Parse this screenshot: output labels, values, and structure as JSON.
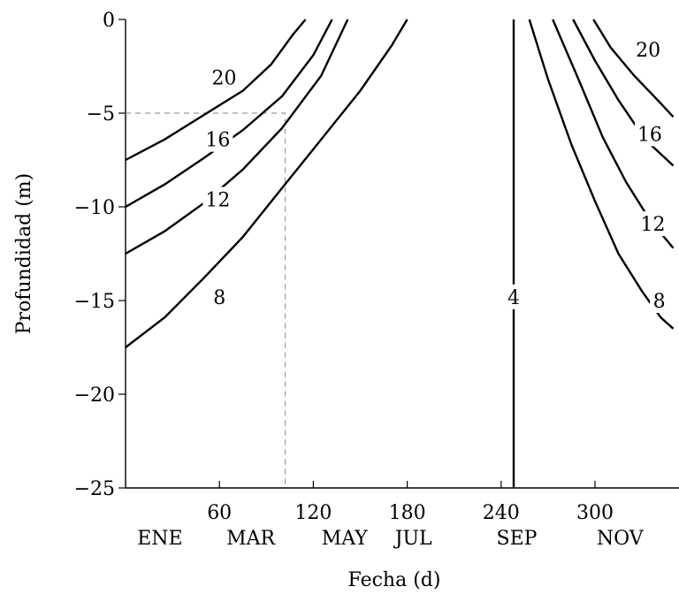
{
  "chart_data": {
    "type": "line",
    "xlabel": "Fecha (d)",
    "ylabel": "Profundidad (m)",
    "xlim": [
      0,
      350
    ],
    "ylim": [
      -25,
      0
    ],
    "xticks": [
      60,
      120,
      180,
      240,
      300
    ],
    "yticks": [
      0,
      -5,
      -10,
      -15,
      -20,
      -25
    ],
    "month_labels": [
      {
        "label": "ENE",
        "x": 22
      },
      {
        "label": "MAR",
        "x": 80
      },
      {
        "label": "MAY",
        "x": 140
      },
      {
        "label": "JUL",
        "x": 184
      },
      {
        "label": "SEP",
        "x": 250
      },
      {
        "label": "NOV",
        "x": 316
      }
    ],
    "guide_point": {
      "x": 102,
      "y": -5
    },
    "series": [
      {
        "name": "20",
        "segments": [
          [
            [
              0,
              -7.5
            ],
            [
              25,
              -6.4
            ],
            [
              50,
              -5.1
            ],
            [
              75,
              -3.8
            ],
            [
              93,
              -2.4
            ],
            [
              107,
              -0.8
            ],
            [
              115,
              0
            ]
          ],
          [
            [
              299,
              0
            ],
            [
              310,
              -1.5
            ],
            [
              325,
              -3.0
            ],
            [
              340,
              -4.3
            ],
            [
              350,
              -5.2
            ]
          ]
        ]
      },
      {
        "name": "16",
        "segments": [
          [
            [
              0,
              -10
            ],
            [
              25,
              -8.8
            ],
            [
              50,
              -7.4
            ],
            [
              75,
              -5.9
            ],
            [
              100,
              -4.1
            ],
            [
              120,
              -1.9
            ],
            [
              132,
              0
            ]
          ],
          [
            [
              286,
              0
            ],
            [
              300,
              -2.2
            ],
            [
              315,
              -4.3
            ],
            [
              332,
              -6.4
            ],
            [
              350,
              -7.8
            ]
          ]
        ]
      },
      {
        "name": "12",
        "segments": [
          [
            [
              0,
              -12.5
            ],
            [
              25,
              -11.3
            ],
            [
              50,
              -9.8
            ],
            [
              75,
              -8.0
            ],
            [
              100,
              -5.8
            ],
            [
              125,
              -3.0
            ],
            [
              142,
              0
            ]
          ],
          [
            [
              273,
              0
            ],
            [
              290,
              -3.3
            ],
            [
              305,
              -6.3
            ],
            [
              320,
              -8.7
            ],
            [
              335,
              -10.7
            ],
            [
              350,
              -12.2
            ]
          ]
        ]
      },
      {
        "name": "8",
        "segments": [
          [
            [
              0,
              -17.5
            ],
            [
              25,
              -15.9
            ],
            [
              50,
              -13.8
            ],
            [
              75,
              -11.6
            ],
            [
              100,
              -9.0
            ],
            [
              125,
              -6.4
            ],
            [
              150,
              -3.8
            ],
            [
              170,
              -1.4
            ],
            [
              180,
              0
            ]
          ],
          [
            [
              258,
              0
            ],
            [
              270,
              -3.2
            ],
            [
              285,
              -6.7
            ],
            [
              300,
              -9.7
            ],
            [
              315,
              -12.5
            ],
            [
              330,
              -14.5
            ],
            [
              342,
              -15.9
            ],
            [
              350,
              -16.5
            ]
          ]
        ]
      },
      {
        "name": "4",
        "segments": [
          [
            [
              248,
              0
            ],
            [
              248,
              -25
            ]
          ]
        ]
      }
    ],
    "contour_labels": [
      {
        "text": "20",
        "x": 63,
        "y": -3.1
      },
      {
        "text": "16",
        "x": 59,
        "y": -6.4
      },
      {
        "text": "12",
        "x": 59,
        "y": -9.6
      },
      {
        "text": "8",
        "x": 60,
        "y": -14.8
      },
      {
        "text": "4",
        "x": 248,
        "y": -14.8
      },
      {
        "text": "20",
        "x": 334,
        "y": -1.6
      },
      {
        "text": "16",
        "x": 335,
        "y": -6.1
      },
      {
        "text": "12",
        "x": 337,
        "y": -10.9
      },
      {
        "text": "8",
        "x": 341,
        "y": -15.0
      }
    ]
  }
}
